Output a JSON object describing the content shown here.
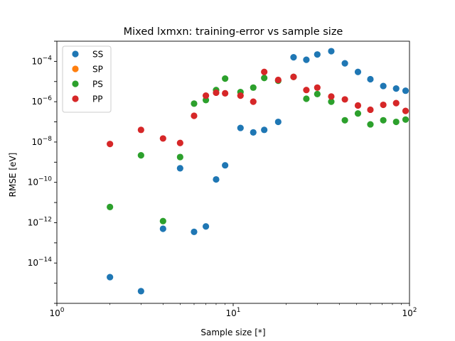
{
  "chart_data": {
    "type": "scatter",
    "title": "Mixed lxmxn: training-error vs sample size",
    "xlabel": "Sample size [*]",
    "ylabel": "RMSE [eV]",
    "xscale": "log",
    "yscale": "log",
    "xlim": [
      1,
      100
    ],
    "ylim_exponents": [
      -16,
      -3
    ],
    "x_ticks": [
      {
        "value": 1,
        "label": "10",
        "exp": "0"
      },
      {
        "value": 10,
        "label": "10",
        "exp": "1"
      },
      {
        "value": 100,
        "label": "10",
        "exp": "2"
      }
    ],
    "y_ticks": [
      {
        "value": 1e-14,
        "label": "10",
        "exp": "−14"
      },
      {
        "value": 1e-12,
        "label": "10",
        "exp": "−12"
      },
      {
        "value": 1e-10,
        "label": "10",
        "exp": "−10"
      },
      {
        "value": 1e-08,
        "label": "10",
        "exp": "−8"
      },
      {
        "value": 1e-06,
        "label": "10",
        "exp": "−6"
      },
      {
        "value": 0.0001,
        "label": "10",
        "exp": "−4"
      }
    ],
    "grid": false,
    "legend_position": "top-left",
    "series": [
      {
        "name": "SS",
        "color": "#1f77b4",
        "points": [
          [
            2,
            2e-15
          ],
          [
            3,
            4e-16
          ],
          [
            4,
            5e-13
          ],
          [
            5,
            5e-10
          ],
          [
            6,
            3.5e-13
          ],
          [
            7,
            6.5e-13
          ],
          [
            8,
            1.4e-10
          ],
          [
            9,
            7e-10
          ],
          [
            11,
            5e-08
          ],
          [
            13,
            3e-08
          ],
          [
            15,
            4e-08
          ],
          [
            18,
            1e-07
          ],
          [
            22,
            0.00016
          ],
          [
            26,
            0.00012
          ],
          [
            30,
            0.00022
          ],
          [
            36,
            0.00032
          ],
          [
            43,
            8e-05
          ],
          [
            51,
            3e-05
          ],
          [
            60,
            1.3e-05
          ],
          [
            71,
            6e-06
          ],
          [
            84,
            4.5e-06
          ],
          [
            95,
            3.5e-06
          ]
        ]
      },
      {
        "name": "SP",
        "color": "#ff7f0e",
        "points": []
      },
      {
        "name": "PS",
        "color": "#2ca02c",
        "points": [
          [
            2,
            6e-12
          ],
          [
            3,
            2.2e-09
          ],
          [
            4,
            1.2e-12
          ],
          [
            5,
            1.8e-09
          ],
          [
            6,
            8e-07
          ],
          [
            7,
            1.2e-06
          ],
          [
            8,
            3.8e-06
          ],
          [
            9,
            1.4e-05
          ],
          [
            11,
            3e-06
          ],
          [
            13,
            5e-06
          ],
          [
            15,
            1.5e-05
          ],
          [
            18,
            1.1e-05
          ],
          [
            22,
            1.7e-05
          ],
          [
            26,
            1.4e-06
          ],
          [
            30,
            2.4e-06
          ],
          [
            36,
            1e-06
          ],
          [
            43,
            1.2e-07
          ],
          [
            51,
            2.6e-07
          ],
          [
            60,
            7.5e-08
          ],
          [
            71,
            1.2e-07
          ],
          [
            84,
            1e-07
          ],
          [
            95,
            1.3e-07
          ]
        ]
      },
      {
        "name": "PP",
        "color": "#d62728",
        "points": [
          [
            2,
            8e-09
          ],
          [
            3,
            4e-08
          ],
          [
            4,
            1.5e-08
          ],
          [
            5,
            9e-09
          ],
          [
            6,
            2e-07
          ],
          [
            7,
            2e-06
          ],
          [
            8,
            2.8e-06
          ],
          [
            9,
            2.6e-06
          ],
          [
            11,
            2e-06
          ],
          [
            13,
            1e-06
          ],
          [
            15,
            3e-05
          ],
          [
            18,
            1.2e-05
          ],
          [
            22,
            1.7e-05
          ],
          [
            26,
            3.8e-06
          ],
          [
            30,
            5e-06
          ],
          [
            36,
            1.8e-06
          ],
          [
            43,
            1.3e-06
          ],
          [
            51,
            6.5e-07
          ],
          [
            60,
            4e-07
          ],
          [
            71,
            7e-07
          ],
          [
            84,
            8.5e-07
          ],
          [
            95,
            3.5e-07
          ]
        ]
      }
    ]
  }
}
